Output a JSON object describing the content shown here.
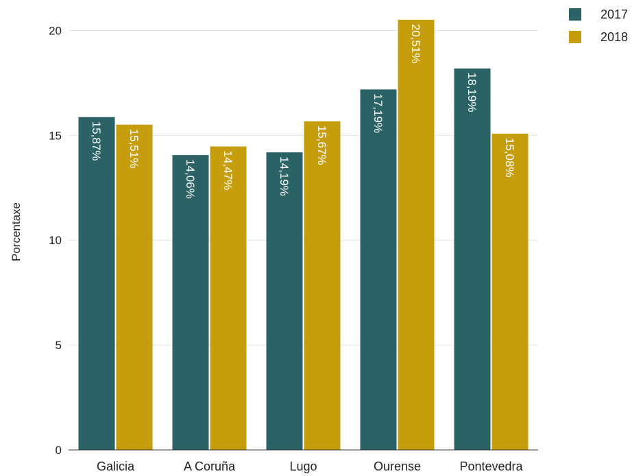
{
  "chart_data": {
    "type": "bar",
    "ylabel": "Porcentaxe",
    "ylim": [
      0,
      20.8
    ],
    "yticks": [
      0,
      5,
      10,
      15,
      20
    ],
    "grid": true,
    "legend_position": "top-right",
    "categories": [
      "Galicia",
      "A Coruña",
      "Lugo",
      "Ourense",
      "Pontevedra"
    ],
    "series": [
      {
        "name": "2017",
        "color": "#2a6266",
        "values": [
          15.87,
          14.06,
          14.19,
          17.19,
          18.19
        ],
        "labels": [
          "15,87%",
          "14,06%",
          "14,19%",
          "17,19%",
          "18,19%"
        ]
      },
      {
        "name": "2018",
        "color": "#c69d0d",
        "values": [
          15.51,
          14.47,
          15.67,
          20.51,
          15.08
        ],
        "labels": [
          "15,51%",
          "14,47%",
          "15,67%",
          "20,51%",
          "15,08%"
        ]
      }
    ]
  }
}
